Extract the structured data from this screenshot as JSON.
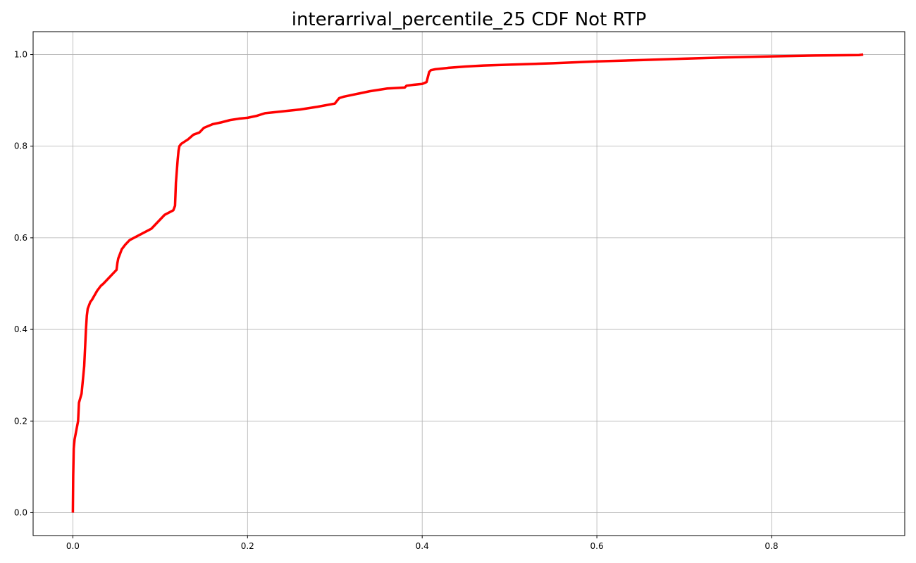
{
  "chart_data": {
    "type": "line",
    "title": "interarrival_percentile_25 CDF Not RTP",
    "xlabel": "",
    "ylabel": "",
    "xlim": [
      -0.0455,
      0.9525
    ],
    "ylim": [
      -0.05,
      1.05
    ],
    "x_ticks": [
      0.0,
      0.2,
      0.4,
      0.6,
      0.8
    ],
    "x_tick_labels": [
      "0.0",
      "0.2",
      "0.4",
      "0.6",
      "0.8"
    ],
    "y_ticks": [
      0.0,
      0.2,
      0.4,
      0.6,
      0.8,
      1.0
    ],
    "y_tick_labels": [
      "0.0",
      "0.2",
      "0.4",
      "0.6",
      "0.8",
      "1.0"
    ],
    "grid": true,
    "series": [
      {
        "name": "",
        "color": "#ff0000",
        "x": [
          0.0,
          0.0004,
          0.001,
          0.002,
          0.004,
          0.006,
          0.007,
          0.01,
          0.013,
          0.015,
          0.016,
          0.017,
          0.018,
          0.02,
          0.022,
          0.025,
          0.028,
          0.032,
          0.035,
          0.04,
          0.045,
          0.05,
          0.051,
          0.052,
          0.054,
          0.056,
          0.06,
          0.065,
          0.07,
          0.075,
          0.08,
          0.085,
          0.09,
          0.095,
          0.1,
          0.105,
          0.11,
          0.115,
          0.117,
          0.118,
          0.12,
          0.121,
          0.122,
          0.124,
          0.128,
          0.132,
          0.138,
          0.145,
          0.15,
          0.16,
          0.17,
          0.18,
          0.19,
          0.2,
          0.21,
          0.22,
          0.24,
          0.26,
          0.28,
          0.3,
          0.302,
          0.305,
          0.31,
          0.32,
          0.34,
          0.36,
          0.38,
          0.382,
          0.39,
          0.4,
          0.405,
          0.408,
          0.41,
          0.415,
          0.43,
          0.45,
          0.47,
          0.5,
          0.55,
          0.6,
          0.65,
          0.7,
          0.75,
          0.8,
          0.85,
          0.9,
          0.905
        ],
        "y": [
          0.0,
          0.08,
          0.14,
          0.16,
          0.18,
          0.2,
          0.24,
          0.26,
          0.32,
          0.4,
          0.43,
          0.445,
          0.45,
          0.46,
          0.465,
          0.475,
          0.485,
          0.495,
          0.5,
          0.51,
          0.52,
          0.53,
          0.545,
          0.555,
          0.565,
          0.575,
          0.585,
          0.595,
          0.6,
          0.605,
          0.61,
          0.615,
          0.62,
          0.63,
          0.64,
          0.65,
          0.655,
          0.66,
          0.67,
          0.72,
          0.77,
          0.79,
          0.8,
          0.805,
          0.81,
          0.815,
          0.825,
          0.83,
          0.84,
          0.848,
          0.852,
          0.857,
          0.86,
          0.862,
          0.866,
          0.872,
          0.876,
          0.88,
          0.886,
          0.893,
          0.898,
          0.905,
          0.908,
          0.912,
          0.92,
          0.926,
          0.928,
          0.932,
          0.934,
          0.936,
          0.94,
          0.962,
          0.966,
          0.968,
          0.971,
          0.974,
          0.976,
          0.978,
          0.981,
          0.985,
          0.988,
          0.991,
          0.994,
          0.996,
          0.998,
          0.999,
          1.0
        ]
      }
    ]
  }
}
